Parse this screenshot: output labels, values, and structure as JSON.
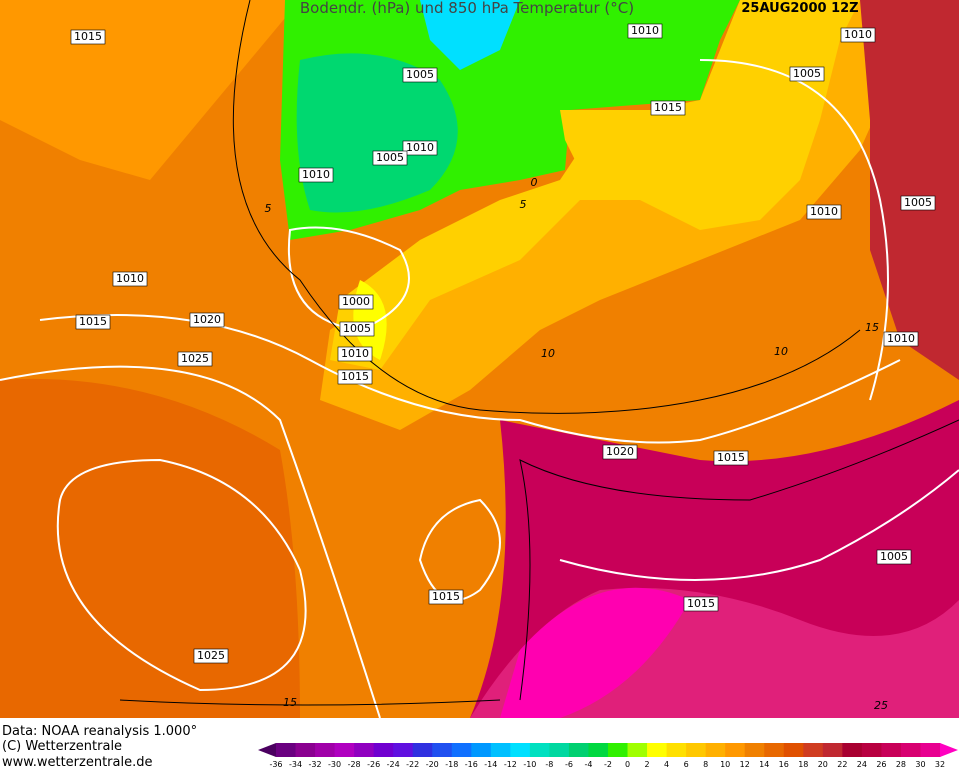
{
  "header": {
    "title": "Bodendr. (hPa) und 850 hPa Temperatur (°C)",
    "date": "25AUG2000 12Z"
  },
  "isobar_labels": [
    "1015",
    "1010",
    "1010",
    "1005",
    "1005",
    "1015",
    "1010",
    "1005",
    "1010",
    "1005",
    "1010",
    "1010",
    "1000",
    "1015",
    "1020",
    "1005",
    "1010",
    "1025",
    "1010",
    "1015",
    "1020",
    "1015",
    "1005",
    "1015",
    "1015",
    "1025"
  ],
  "temperature_labels": [
    "5",
    "0",
    "5",
    "10",
    "10",
    "15",
    "15",
    "25"
  ],
  "footer": {
    "source": "Data: NOAA reanalysis 1.000°",
    "copyright": "(C) Wetterzentrale",
    "url": "www.wetterzentrale.de"
  },
  "colorbar": {
    "labels": [
      -36,
      -34,
      -32,
      -30,
      -28,
      -26,
      -24,
      -22,
      -20,
      -18,
      -16,
      -14,
      -12,
      -10,
      -8,
      -6,
      -4,
      -2,
      0,
      2,
      4,
      6,
      8,
      10,
      12,
      14,
      16,
      18,
      20,
      22,
      24,
      26,
      28,
      30,
      32
    ],
    "colors": [
      "#4b0060",
      "#6a0080",
      "#8a0090",
      "#a000a8",
      "#b000c0",
      "#9000c0",
      "#7000d0",
      "#6010e0",
      "#3030e0",
      "#2050f0",
      "#1070ff",
      "#0098ff",
      "#00c0ff",
      "#00e0ff",
      "#00e0c0",
      "#00d8a0",
      "#00d070",
      "#00d840",
      "#30f000",
      "#a0ff00",
      "#ffff00",
      "#ffe000",
      "#ffc800",
      "#ffb000",
      "#ff9800",
      "#f08000",
      "#e86800",
      "#e05000",
      "#d03c20",
      "#c02830",
      "#a80030",
      "#b80040",
      "#c80058",
      "#d80070",
      "#e80090",
      "#ff00c0"
    ]
  }
}
